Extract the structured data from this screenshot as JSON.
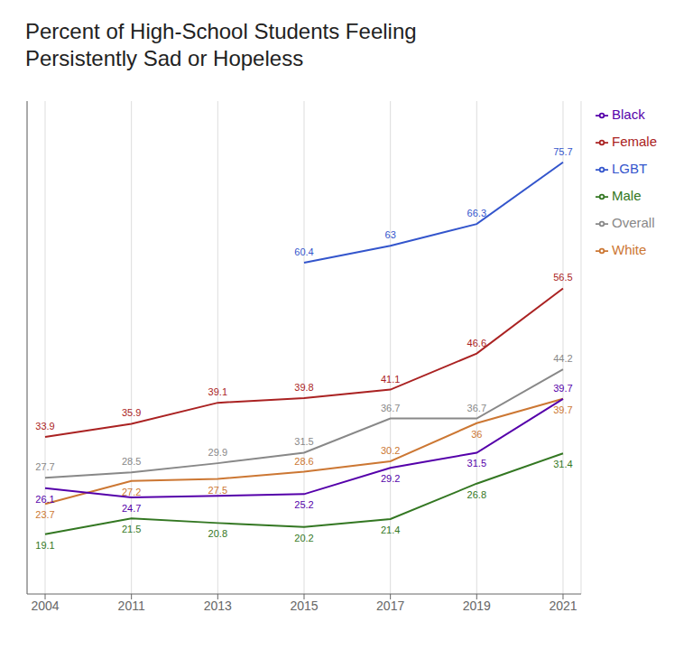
{
  "chart_data": {
    "type": "line",
    "title": "Percent of High-School Students Feeling\nPersistently Sad or Hopeless",
    "categories": [
      "2004",
      "2011",
      "2013",
      "2015",
      "2017",
      "2019",
      "2021"
    ],
    "series": [
      {
        "name": "LGBT",
        "color": "#3355CC",
        "values": [
          null,
          null,
          null,
          60.4,
          63,
          66.3,
          75.7
        ]
      },
      {
        "name": "Female",
        "color": "#AA2222",
        "values": [
          33.9,
          35.9,
          39.1,
          39.8,
          41.1,
          46.6,
          56.5
        ]
      },
      {
        "name": "Overall",
        "color": "#888888",
        "values": [
          27.7,
          28.5,
          29.9,
          31.5,
          36.7,
          36.7,
          44.2
        ]
      },
      {
        "name": "White",
        "color": "#CC7733",
        "values": [
          23.7,
          27.2,
          27.5,
          28.6,
          30.2,
          36.0,
          39.7
        ]
      },
      {
        "name": "Black",
        "color": "#5500AA",
        "values": [
          26.1,
          24.7,
          null,
          25.2,
          29.2,
          31.5,
          39.7
        ]
      },
      {
        "name": "Male",
        "color": "#337722",
        "values": [
          19.1,
          21.5,
          20.8,
          20.2,
          21.4,
          26.8,
          31.4
        ]
      }
    ],
    "ylim": [
      10,
      85
    ],
    "grid": true,
    "legend": "right",
    "data_labels": true,
    "tick_labels": "x"
  }
}
